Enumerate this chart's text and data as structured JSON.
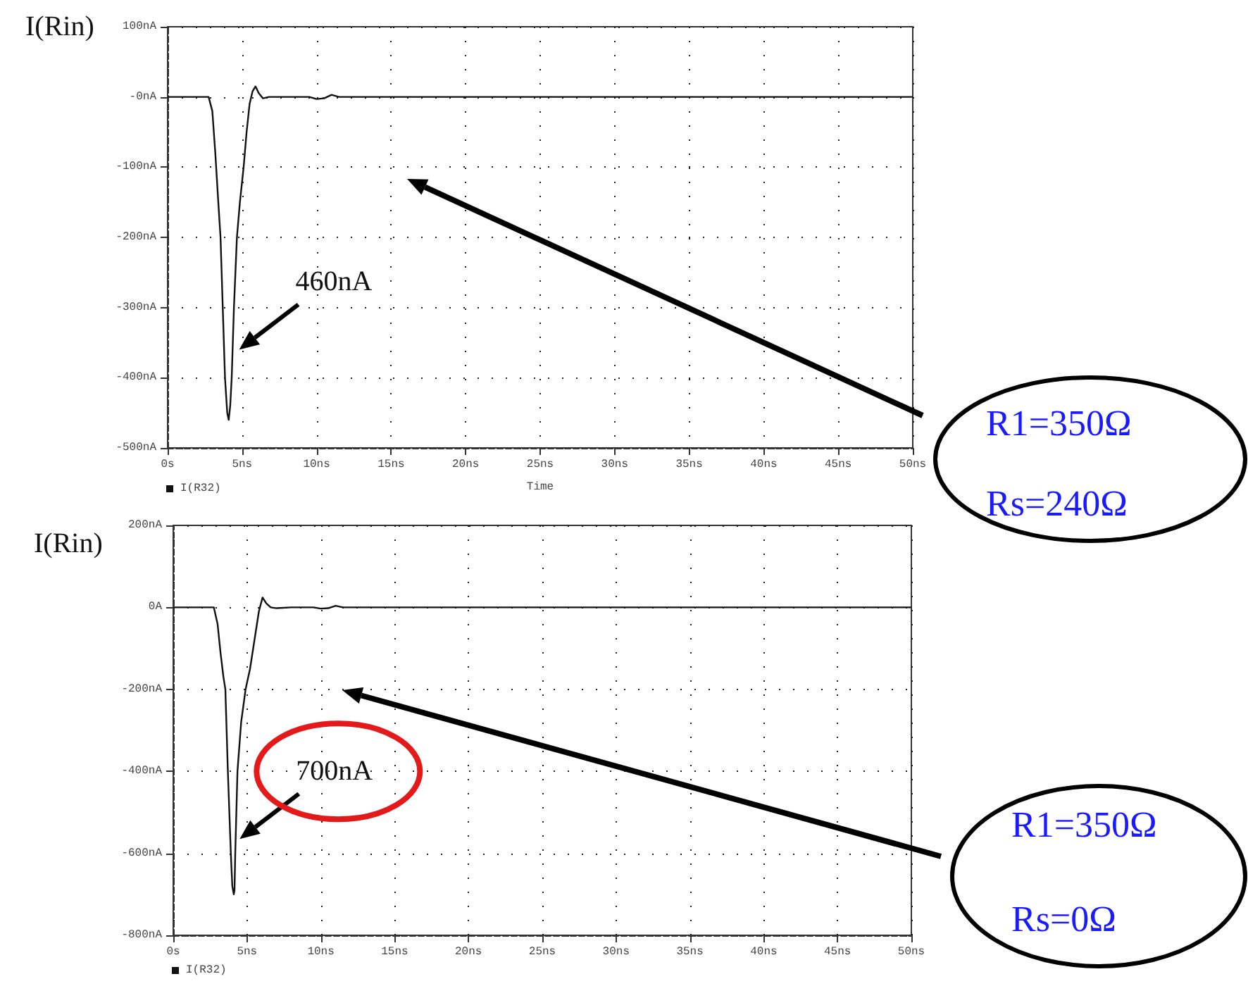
{
  "chart_data": [
    {
      "type": "line",
      "ylabel": "I(Rin)",
      "xlabel": "Time",
      "legend": "bottom left",
      "grid": true,
      "line_style": "solid",
      "marker": "none",
      "xlim": [
        0,
        50
      ],
      "xticks": [
        {
          "value": 0,
          "label": "0s"
        },
        {
          "value": 5,
          "label": "5ns"
        },
        {
          "value": 10,
          "label": "10ns"
        },
        {
          "value": 15,
          "label": "15ns"
        },
        {
          "value": 20,
          "label": "20ns"
        },
        {
          "value": 25,
          "label": "25ns"
        },
        {
          "value": 30,
          "label": "30ns"
        },
        {
          "value": 35,
          "label": "35ns"
        },
        {
          "value": 40,
          "label": "40ns"
        },
        {
          "value": 45,
          "label": "45ns"
        },
        {
          "value": 50,
          "label": "50ns"
        }
      ],
      "ylim": [
        -500,
        100
      ],
      "yticks": [
        {
          "value": 100,
          "label": "100nA"
        },
        {
          "value": 0,
          "label": "-0nA"
        },
        {
          "value": -100,
          "label": "-100nA"
        },
        {
          "value": -200,
          "label": "-200nA"
        },
        {
          "value": -300,
          "label": "-300nA"
        },
        {
          "value": -400,
          "label": "-400nA"
        },
        {
          "value": -500,
          "label": "-500nA"
        }
      ],
      "x": [
        0,
        1,
        2,
        2.5,
        2.75,
        3.0,
        3.2,
        3.4,
        3.55,
        3.7,
        3.85,
        4.0,
        4.1,
        4.2,
        4.3,
        4.45,
        4.65,
        4.85,
        5.1,
        5.3,
        5.5,
        5.7,
        5.9,
        6.1,
        6.4,
        6.8,
        8,
        9.5,
        10,
        10.5,
        11,
        11.5,
        12,
        15,
        20,
        30,
        40,
        50
      ],
      "series": [
        {
          "name": "I(R32)",
          "color": "#111111",
          "values": [
            0,
            0,
            0,
            0,
            0,
            -20,
            -80,
            -150,
            -200,
            -300,
            -400,
            -450,
            -460,
            -440,
            -400,
            -300,
            -200,
            -150,
            -100,
            -50,
            -10,
            8,
            15,
            6,
            -2,
            0,
            0,
            0,
            -3,
            -2,
            3,
            0,
            0,
            0,
            0,
            0,
            0,
            0
          ]
        }
      ],
      "annotations": [
        {
          "text": "460nA",
          "x": 4.8,
          "y": -360
        },
        "R1=350Ω",
        "Rs=240Ω"
      ]
    },
    {
      "type": "line",
      "ylabel": "I(Rin)",
      "legend": "bottom left",
      "grid": true,
      "line_style": "solid",
      "marker": "none",
      "xlim": [
        0,
        50
      ],
      "xticks": [
        {
          "value": 0,
          "label": "0s"
        },
        {
          "value": 5,
          "label": "5ns"
        },
        {
          "value": 10,
          "label": "10ns"
        },
        {
          "value": 15,
          "label": "15ns"
        },
        {
          "value": 20,
          "label": "20ns"
        },
        {
          "value": 25,
          "label": "25ns"
        },
        {
          "value": 30,
          "label": "30ns"
        },
        {
          "value": 35,
          "label": "35ns"
        },
        {
          "value": 40,
          "label": "40ns"
        },
        {
          "value": 45,
          "label": "45ns"
        },
        {
          "value": 50,
          "label": "50ns"
        }
      ],
      "ylim": [
        -800,
        200
      ],
      "yticks": [
        {
          "value": 200,
          "label": "200nA"
        },
        {
          "value": 0,
          "label": "0A"
        },
        {
          "value": -200,
          "label": "-200nA"
        },
        {
          "value": -400,
          "label": "-400nA"
        },
        {
          "value": -600,
          "label": "-600nA"
        },
        {
          "value": -800,
          "label": "-800nA"
        }
      ],
      "x": [
        0,
        1,
        2,
        2.5,
        2.75,
        3.0,
        3.2,
        3.4,
        3.53,
        3.7,
        3.9,
        4.0,
        4.1,
        4.15,
        4.2,
        4.35,
        4.6,
        4.9,
        5.2,
        5.5,
        5.8,
        6.05,
        6.3,
        6.6,
        7,
        8,
        9.5,
        10,
        10.5,
        11,
        11.5,
        12,
        15,
        20,
        30,
        40,
        50
      ],
      "series": [
        {
          "name": "I(R32)",
          "color": "#111111",
          "values": [
            0,
            0,
            0,
            0,
            0,
            -40,
            -110,
            -170,
            -200,
            -400,
            -600,
            -680,
            -700,
            -690,
            -600,
            -400,
            -280,
            -200,
            -150,
            -80,
            -10,
            24,
            10,
            0,
            -2,
            0,
            0,
            -3,
            -2,
            4,
            0,
            0,
            0,
            0,
            0,
            0,
            0
          ]
        }
      ],
      "annotations": [
        {
          "text": "700nA",
          "x": 4.5,
          "y": -565
        },
        "R1=350Ω",
        "Rs=0Ω"
      ]
    }
  ]
}
